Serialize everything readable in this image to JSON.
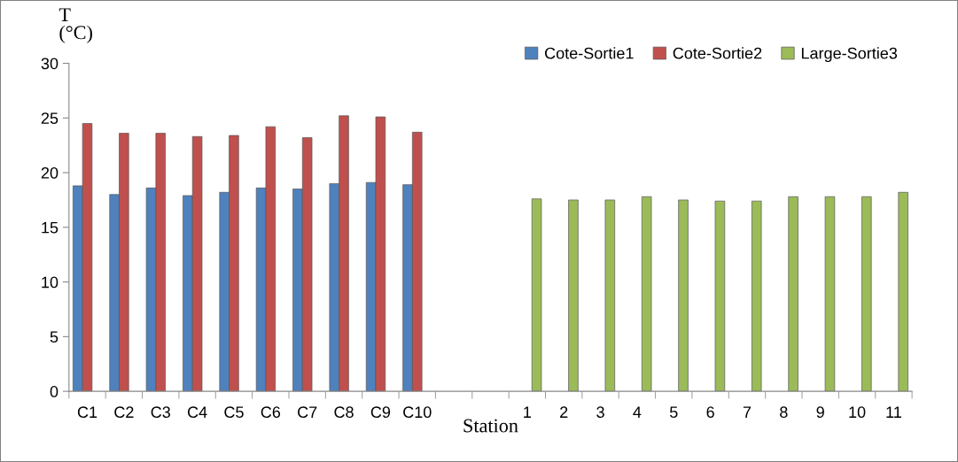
{
  "chart_data": {
    "type": "bar",
    "xlabel": "Station",
    "ylabel": "T\n(°C)",
    "categories": [
      "C1",
      "C2",
      "C3",
      "C4",
      "C5",
      "C6",
      "C7",
      "C8",
      "C9",
      "C10",
      null,
      null,
      "1",
      "2",
      "3",
      "4",
      "5",
      "6",
      "7",
      "8",
      "9",
      "10",
      "11"
    ],
    "series": [
      {
        "name": "Cote-Sortie1",
        "color": "#4f81bd",
        "values": [
          18.8,
          18.0,
          18.6,
          17.9,
          18.2,
          18.6,
          18.5,
          19.0,
          19.1,
          18.9,
          null,
          null,
          null,
          null,
          null,
          null,
          null,
          null,
          null,
          null,
          null,
          null,
          null
        ]
      },
      {
        "name": "Cote-Sortie2",
        "color": "#c0504d",
        "values": [
          24.5,
          23.6,
          23.6,
          23.3,
          23.4,
          24.2,
          23.2,
          25.2,
          25.1,
          23.7,
          null,
          null,
          null,
          null,
          null,
          null,
          null,
          null,
          null,
          null,
          null,
          null,
          null
        ]
      },
      {
        "name": "Large-Sortie3",
        "color": "#9bbb59",
        "values": [
          null,
          null,
          null,
          null,
          null,
          null,
          null,
          null,
          null,
          null,
          null,
          null,
          17.6,
          17.5,
          17.5,
          17.8,
          17.5,
          17.4,
          17.4,
          17.8,
          17.8,
          17.8,
          18.2
        ]
      }
    ],
    "ylim": [
      0,
      30
    ],
    "yticks": [
      0,
      5,
      10,
      15,
      20,
      25,
      30
    ],
    "grid": false,
    "legend": "top right"
  }
}
